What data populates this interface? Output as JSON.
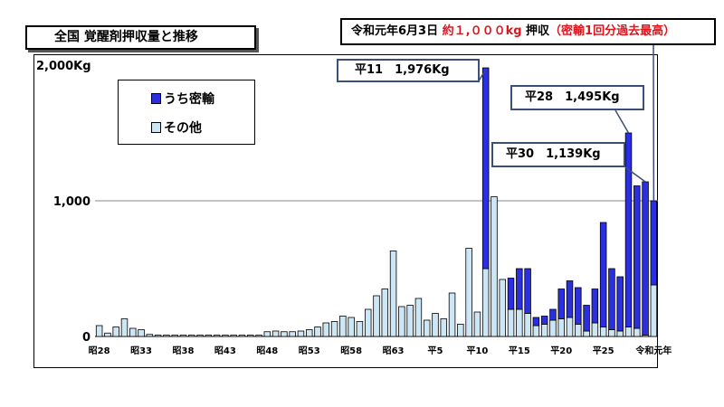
{
  "header": {
    "title": "全国 覚醒剤押収量と推移",
    "top_note_prefix": "令和元年6月3日 ",
    "top_note_highlight": "約１,０００kg",
    "top_note_mid": " 押収",
    "top_note_paren": "（密輸1回分過去最高）"
  },
  "callouts": {
    "h11": "平11　1,976Kg",
    "h28": "平28　1,495Kg",
    "h30": "平30　1,139Kg"
  },
  "colors": {
    "smuggled": "#2b2fe0",
    "other": "#cde6f5",
    "note_red": "#e0141c",
    "callout_border": "#3b4f7a"
  },
  "chart_data": {
    "type": "bar",
    "stacked": true,
    "unit": "Kg",
    "ylim": [
      0,
      2000
    ],
    "y_ticks": [
      {
        "value": 0,
        "label": "0"
      },
      {
        "value": 1000,
        "label": "1,000"
      },
      {
        "value": 2000,
        "label": "2,000Kg"
      }
    ],
    "x_tick_labels": [
      "昭28",
      "昭33",
      "昭38",
      "昭43",
      "昭48",
      "昭53",
      "昭58",
      "昭63",
      "平5",
      "平10",
      "平15",
      "平20",
      "平25",
      "令和元年"
    ],
    "x_tick_indices": [
      0,
      5,
      10,
      15,
      20,
      25,
      30,
      35,
      40,
      45,
      50,
      55,
      60,
      66
    ],
    "categories": [
      "昭28",
      "昭29",
      "昭30",
      "昭31",
      "昭32",
      "昭33",
      "昭34",
      "昭35",
      "昭36",
      "昭37",
      "昭38",
      "昭39",
      "昭40",
      "昭41",
      "昭42",
      "昭43",
      "昭44",
      "昭45",
      "昭46",
      "昭47",
      "昭48",
      "昭49",
      "昭50",
      "昭51",
      "昭52",
      "昭53",
      "昭54",
      "昭55",
      "昭56",
      "昭57",
      "昭58",
      "昭59",
      "昭60",
      "昭61",
      "昭62",
      "昭63",
      "平1",
      "平2",
      "平3",
      "平4",
      "平5",
      "平6",
      "平7",
      "平8",
      "平9",
      "平10",
      "平11",
      "平12",
      "平13",
      "平14",
      "平15",
      "平16",
      "平17",
      "平18",
      "平19",
      "平20",
      "平21",
      "平22",
      "平23",
      "平24",
      "平25",
      "平26",
      "平27",
      "平28",
      "平29",
      "平30",
      "令和元年"
    ],
    "series": [
      {
        "name": "うち密輸",
        "values": [
          0,
          0,
          0,
          0,
          0,
          0,
          0,
          0,
          0,
          0,
          0,
          0,
          0,
          0,
          0,
          0,
          0,
          0,
          0,
          0,
          0,
          0,
          0,
          0,
          0,
          0,
          0,
          0,
          0,
          0,
          0,
          0,
          0,
          0,
          0,
          0,
          0,
          0,
          0,
          0,
          0,
          0,
          0,
          0,
          0,
          0,
          1480,
          0,
          0,
          230,
          300,
          330,
          60,
          60,
          80,
          220,
          270,
          270,
          190,
          250,
          770,
          450,
          400,
          1430,
          1050,
          1130,
          620
        ]
      },
      {
        "name": "その他",
        "values": [
          80,
          25,
          70,
          130,
          60,
          50,
          15,
          10,
          10,
          10,
          10,
          10,
          10,
          10,
          10,
          10,
          10,
          10,
          10,
          10,
          35,
          40,
          35,
          35,
          40,
          50,
          70,
          100,
          110,
          150,
          140,
          110,
          200,
          300,
          350,
          630,
          220,
          230,
          280,
          120,
          170,
          130,
          320,
          90,
          650,
          180,
          500,
          1030,
          420,
          200,
          200,
          170,
          80,
          90,
          120,
          130,
          140,
          90,
          40,
          100,
          70,
          50,
          40,
          70,
          60,
          10,
          380
        ]
      }
    ]
  },
  "legend": {
    "items": [
      {
        "label": "うち密輸"
      },
      {
        "label": "その他"
      }
    ]
  }
}
